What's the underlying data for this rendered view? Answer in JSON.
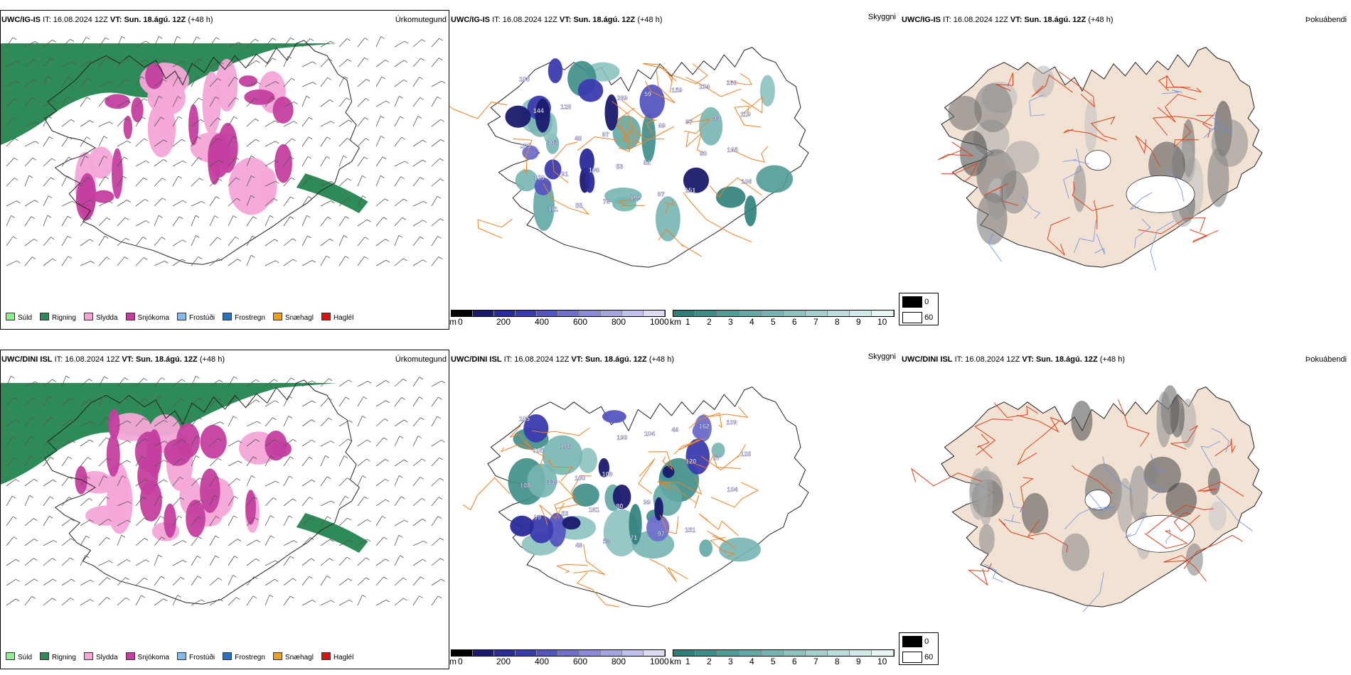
{
  "rows": [
    {
      "model": "UWC/IG-IS",
      "it_label": "IT:",
      "it_value": "16.08.2024 12Z",
      "vt_label": "VT:",
      "vt_value": "Sun. 18.ágú. 12Z",
      "lead": "(+48 h)"
    },
    {
      "model": "UWC/DINI ISL",
      "it_label": "IT:",
      "it_value": "16.08.2024 12Z",
      "vt_label": "VT:",
      "vt_value": "Sun. 18.ágú. 12Z",
      "lead": "(+48 h)"
    }
  ],
  "panel_titles": {
    "precip": "Úrkomutegund",
    "visibility": "Skyggni",
    "fog": "Þokuábendi"
  },
  "precip_legend": [
    {
      "label": "Súld",
      "color": "#90ee90"
    },
    {
      "label": "Rigning",
      "color": "#2e8b57"
    },
    {
      "label": "Slydda",
      "color": "#f4a6d7"
    },
    {
      "label": "Snjókoma",
      "color": "#c43f9f"
    },
    {
      "label": "Frostúði",
      "color": "#87b8e8"
    },
    {
      "label": "Frostregn",
      "color": "#2f6fbf"
    },
    {
      "label": "Snæhagl",
      "color": "#f0a020"
    },
    {
      "label": "Haglél",
      "color": "#e01010"
    }
  ],
  "ceiling_scale": {
    "unit": "m",
    "ticks": [
      "0",
      "200",
      "400",
      "600",
      "800",
      "1000"
    ],
    "colors": [
      "#000000",
      "#1a1a6e",
      "#2a2a9a",
      "#3b3bb0",
      "#5555c0",
      "#7070cc",
      "#8a8ad6",
      "#a5a5e0",
      "#c0c0ea",
      "#dcdcf4"
    ]
  },
  "visibility_scale": {
    "unit": "km",
    "ticks": [
      "1",
      "2",
      "3",
      "4",
      "5",
      "6",
      "7",
      "8",
      "9",
      "10"
    ],
    "colors": [
      "#2e7f7a",
      "#3d8d88",
      "#4f9b96",
      "#62a8a4",
      "#77b5b2",
      "#8dc2c0",
      "#a4cfcd",
      "#bbdcdb",
      "#d2e9e8",
      "#e8f4f4"
    ]
  },
  "fog_key": [
    {
      "value": "0",
      "color": "#000000"
    },
    {
      "value": "60",
      "color": "#ffffff"
    }
  ],
  "ceiling_labels_row1": [
    "108",
    "128",
    "97",
    "82",
    "151",
    "160",
    "144",
    "48",
    "53",
    "97",
    "134",
    "119",
    "303",
    "198",
    "199",
    "159",
    "99",
    "205",
    "91",
    "76",
    "59",
    "97",
    "165",
    "130",
    "55",
    "269",
    "69",
    "80",
    "106",
    "111"
  ],
  "ceiling_labels_row2": [
    "105",
    "108",
    "109",
    "99",
    "151",
    "109",
    "105",
    "100",
    "80",
    "97",
    "162",
    "128",
    "339",
    "161",
    "71",
    "46",
    "57",
    "108",
    "53",
    "54",
    "104",
    "120",
    "104",
    "99",
    "49",
    "190"
  ]
}
